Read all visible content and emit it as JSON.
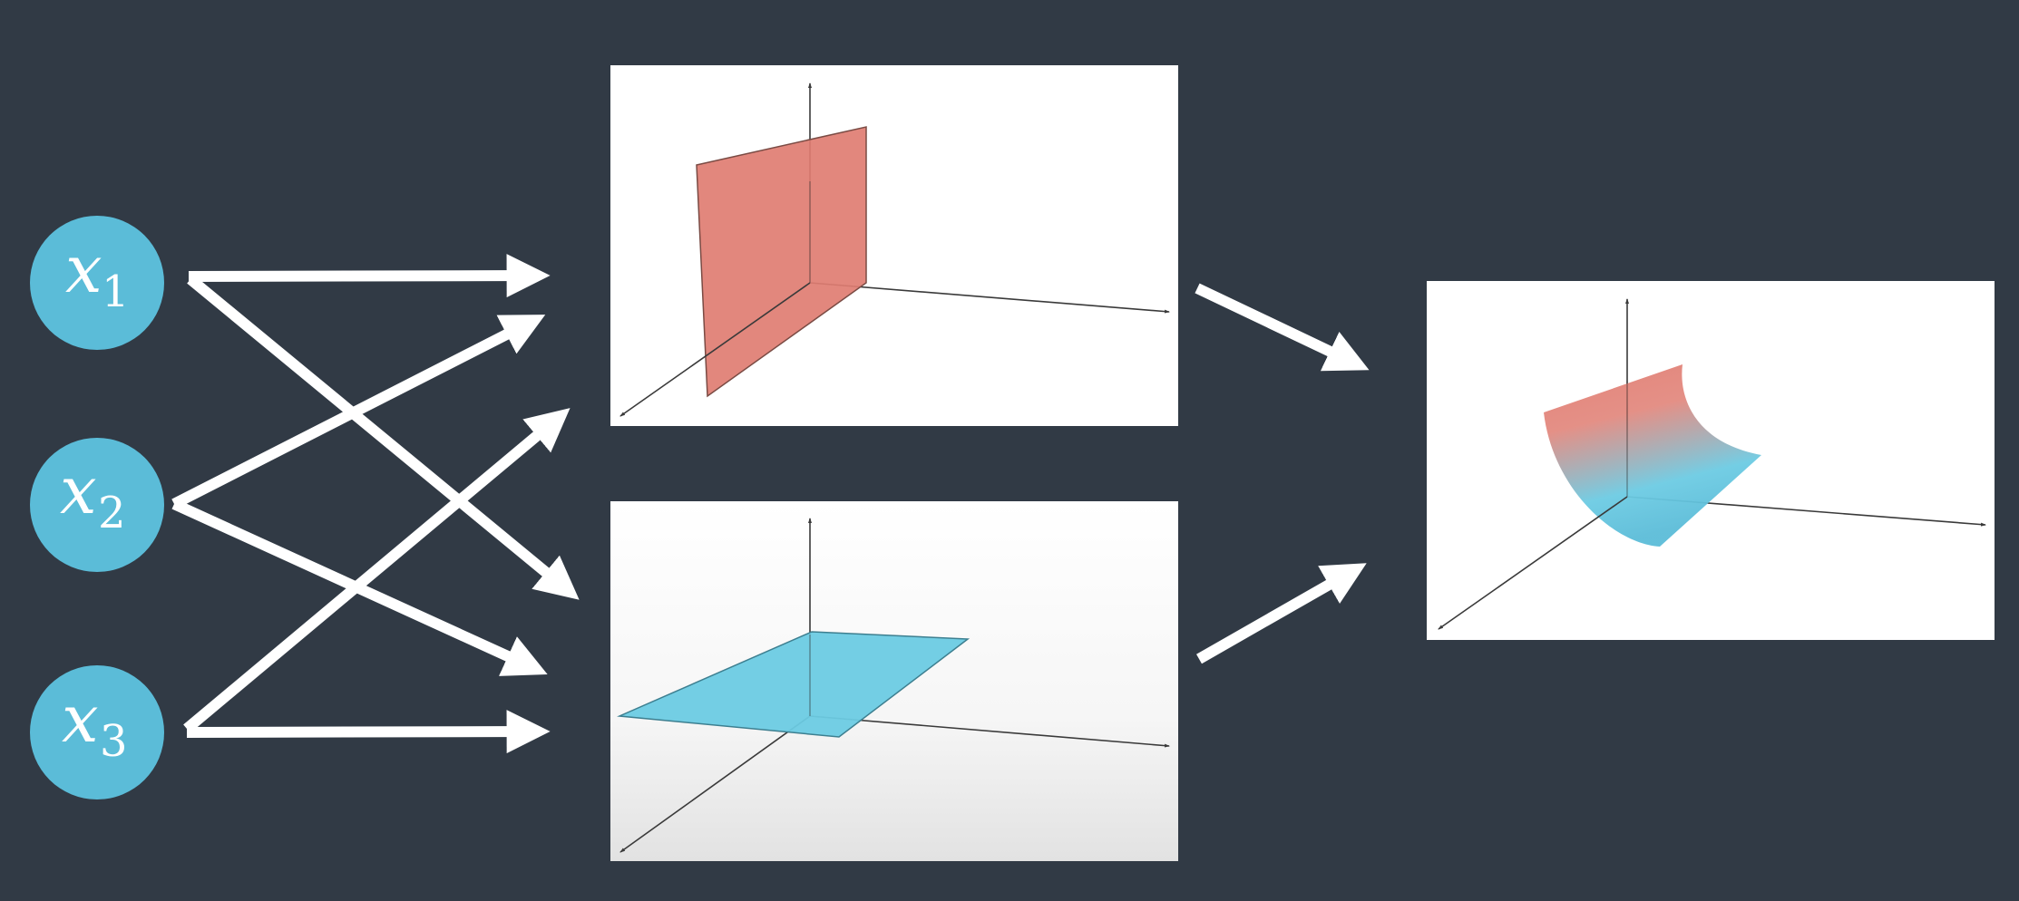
{
  "colors": {
    "background": "#313a45",
    "node_fill": "#5bbcd8",
    "arrow": "#ffffff",
    "panel_bg": "#ffffff",
    "axis": "#3a3a3a",
    "vertical_plane": "#e07d72",
    "horizontal_plane": "#6ccbe3",
    "surface_top": "#e07d72",
    "surface_bottom": "#6ccbe3"
  },
  "inputs": [
    {
      "id": "x1",
      "var": "x",
      "sub": "1"
    },
    {
      "id": "x2",
      "var": "x",
      "sub": "2"
    },
    {
      "id": "x3",
      "var": "x",
      "sub": "3"
    }
  ],
  "panels": [
    {
      "id": "vertical-plane-plot",
      "surface": "vertical-plane"
    },
    {
      "id": "horizontal-plane-plot",
      "surface": "horizontal-plane"
    },
    {
      "id": "combined-surface-plot",
      "surface": "curved-surface"
    }
  ],
  "connections": [
    {
      "from": "x1",
      "to": "vertical-plane-plot"
    },
    {
      "from": "x1",
      "to": "horizontal-plane-plot"
    },
    {
      "from": "x2",
      "to": "vertical-plane-plot"
    },
    {
      "from": "x2",
      "to": "horizontal-plane-plot"
    },
    {
      "from": "x3",
      "to": "vertical-plane-plot"
    },
    {
      "from": "x3",
      "to": "horizontal-plane-plot"
    },
    {
      "from": "vertical-plane-plot",
      "to": "combined-surface-plot"
    },
    {
      "from": "horizontal-plane-plot",
      "to": "combined-surface-plot"
    }
  ]
}
